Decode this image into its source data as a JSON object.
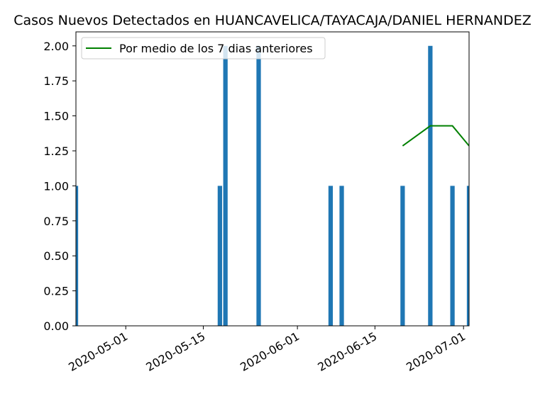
{
  "chart_data": {
    "type": "bar",
    "title": "Casos Nuevos Detectados en HUANCAVELICA/TAYACAJA/DANIEL HERNANDEZ",
    "xlabel": "",
    "ylabel": "",
    "x_range": [
      "2020-04-22",
      "2020-07-02"
    ],
    "ylim": [
      0,
      2.1
    ],
    "y_ticks": [
      "0.00",
      "0.25",
      "0.50",
      "0.75",
      "1.00",
      "1.25",
      "1.50",
      "1.75",
      "2.00"
    ],
    "x_ticks": [
      "2020-05-01",
      "2020-05-15",
      "2020-06-01",
      "2020-06-15",
      "2020-07-01"
    ],
    "grid": false,
    "legend_position": "top-left",
    "bar_color": "#1f77b4",
    "line_color": "#008000",
    "bars": {
      "name": "",
      "x": [
        "2020-04-22",
        "2020-05-18",
        "2020-05-19",
        "2020-05-25",
        "2020-06-07",
        "2020-06-09",
        "2020-06-20",
        "2020-06-25",
        "2020-06-29",
        "2020-07-02"
      ],
      "values": [
        1,
        1,
        2,
        2,
        1,
        1,
        1,
        2,
        1,
        1
      ]
    },
    "series": [
      {
        "name": "Por medio de los 7 dias anteriores",
        "x": [
          "2020-06-20",
          "2020-06-25",
          "2020-06-29",
          "2020-07-02"
        ],
        "values": [
          1.2857,
          1.4286,
          1.4286,
          1.2857
        ]
      }
    ]
  }
}
